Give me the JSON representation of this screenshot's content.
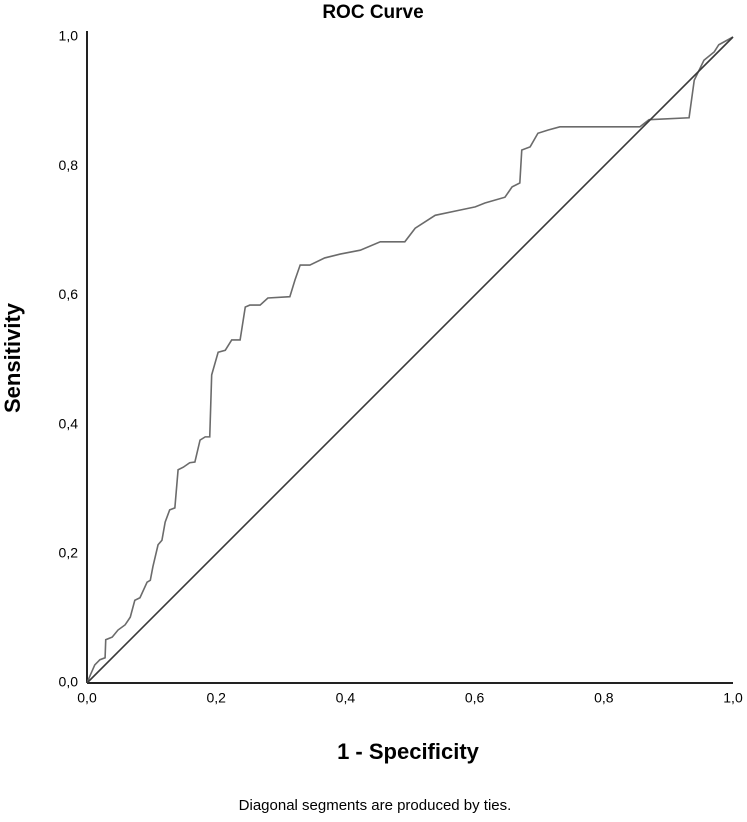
{
  "chart_data": {
    "type": "line",
    "title": "ROC Curve",
    "xlabel": "1 - Specificity",
    "ylabel": "Sensitivity",
    "footnote": "Diagonal segments are produced by ties.",
    "xlim": [
      0,
      1
    ],
    "ylim": [
      0,
      1
    ],
    "xticks": [
      {
        "value": 0,
        "label": "0,0"
      },
      {
        "value": 0.2,
        "label": "0,2"
      },
      {
        "value": 0.4,
        "label": "0,4"
      },
      {
        "value": 0.6,
        "label": "0,6"
      },
      {
        "value": 0.8,
        "label": "0,8"
      },
      {
        "value": 1,
        "label": "1,0"
      }
    ],
    "yticks": [
      {
        "value": 0,
        "label": "0,0"
      },
      {
        "value": 0.2,
        "label": "0,2"
      },
      {
        "value": 0.4,
        "label": "0,4"
      },
      {
        "value": 0.6,
        "label": "0,6"
      },
      {
        "value": 0.8,
        "label": "0,8"
      },
      {
        "value": 1,
        "label": "1,0"
      }
    ],
    "grid": false,
    "series": [
      {
        "color": "#6b6b6b",
        "x": [
          0,
          0.005,
          0.012,
          0.02,
          0.028,
          0.029,
          0.039,
          0.048,
          0.059,
          0.067,
          0.074,
          0.082,
          0.093,
          0.098,
          0.102,
          0.11,
          0.116,
          0.121,
          0.128,
          0.136,
          0.141,
          0.149,
          0.159,
          0.167,
          0.175,
          0.183,
          0.19,
          0.193,
          0.203,
          0.214,
          0.224,
          0.237,
          0.245,
          0.252,
          0.268,
          0.28,
          0.314,
          0.322,
          0.33,
          0.345,
          0.368,
          0.392,
          0.423,
          0.454,
          0.492,
          0.508,
          0.539,
          0.577,
          0.601,
          0.616,
          0.647,
          0.658,
          0.67,
          0.673,
          0.686,
          0.698,
          0.714,
          0.732,
          0.856,
          0.87,
          0.932,
          0.94,
          0.955,
          0.971,
          0.978,
          1
        ],
        "values": [
          0,
          0.012,
          0.028,
          0.036,
          0.039,
          0.067,
          0.071,
          0.082,
          0.09,
          0.102,
          0.128,
          0.132,
          0.156,
          0.159,
          0.18,
          0.214,
          0.221,
          0.249,
          0.268,
          0.271,
          0.33,
          0.334,
          0.341,
          0.342,
          0.376,
          0.381,
          0.381,
          0.477,
          0.512,
          0.515,
          0.531,
          0.531,
          0.582,
          0.585,
          0.585,
          0.596,
          0.598,
          0.624,
          0.647,
          0.647,
          0.658,
          0.664,
          0.67,
          0.683,
          0.683,
          0.704,
          0.724,
          0.732,
          0.737,
          0.743,
          0.752,
          0.768,
          0.774,
          0.825,
          0.83,
          0.851,
          0.856,
          0.861,
          0.861,
          0.872,
          0.875,
          0.933,
          0.964,
          0.977,
          0.988,
          1
        ]
      },
      {
        "color": "#3a3a3a",
        "x": [
          0,
          1
        ],
        "values": [
          0,
          1
        ]
      }
    ]
  }
}
